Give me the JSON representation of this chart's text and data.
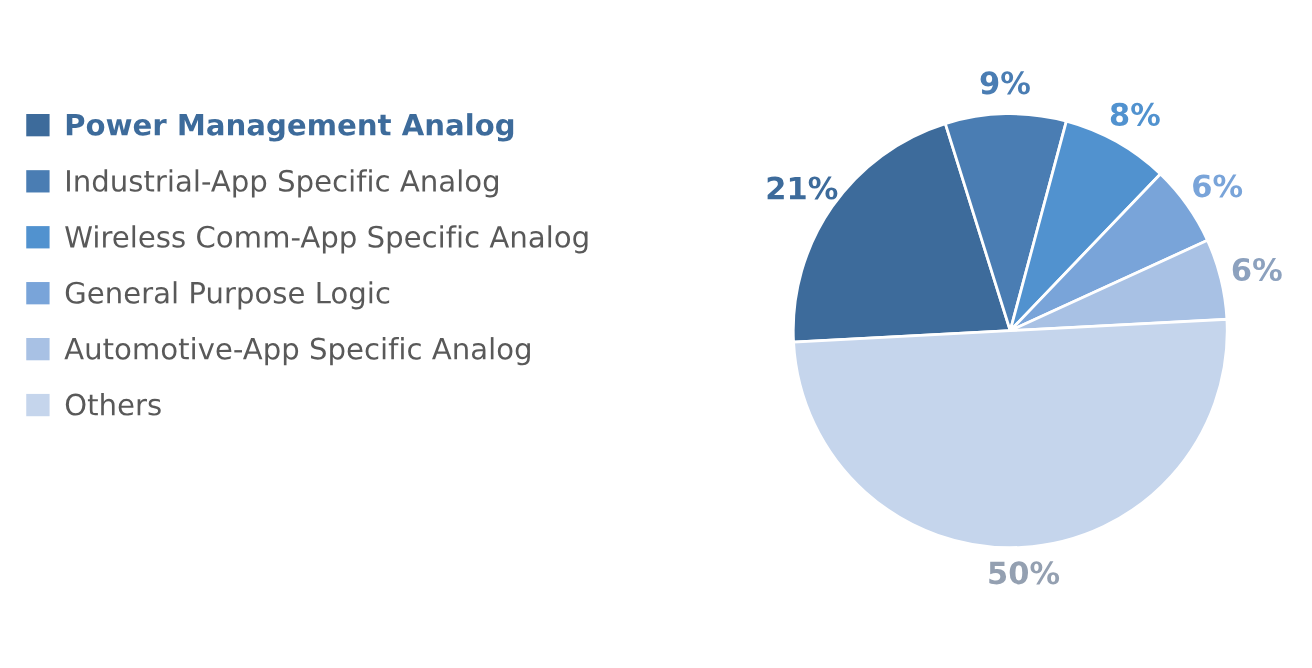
{
  "chart_data": {
    "type": "pie",
    "categories": [
      "Power Management Analog",
      "Industrial-App Specific Analog",
      "Wireless Comm-App Specific Analog",
      "General Purpose Logic",
      "Automotive-App Specific Analog",
      "Others"
    ],
    "values": [
      21,
      9,
      8,
      6,
      6,
      50
    ],
    "colors": [
      "#3d6b9b",
      "#4a7db3",
      "#5192cf",
      "#79a4d9",
      "#a8c1e4",
      "#c5d5ec"
    ],
    "value_labels": [
      "21%",
      "9%",
      "8%",
      "6%",
      "6%",
      "50%"
    ],
    "legend": "left"
  }
}
